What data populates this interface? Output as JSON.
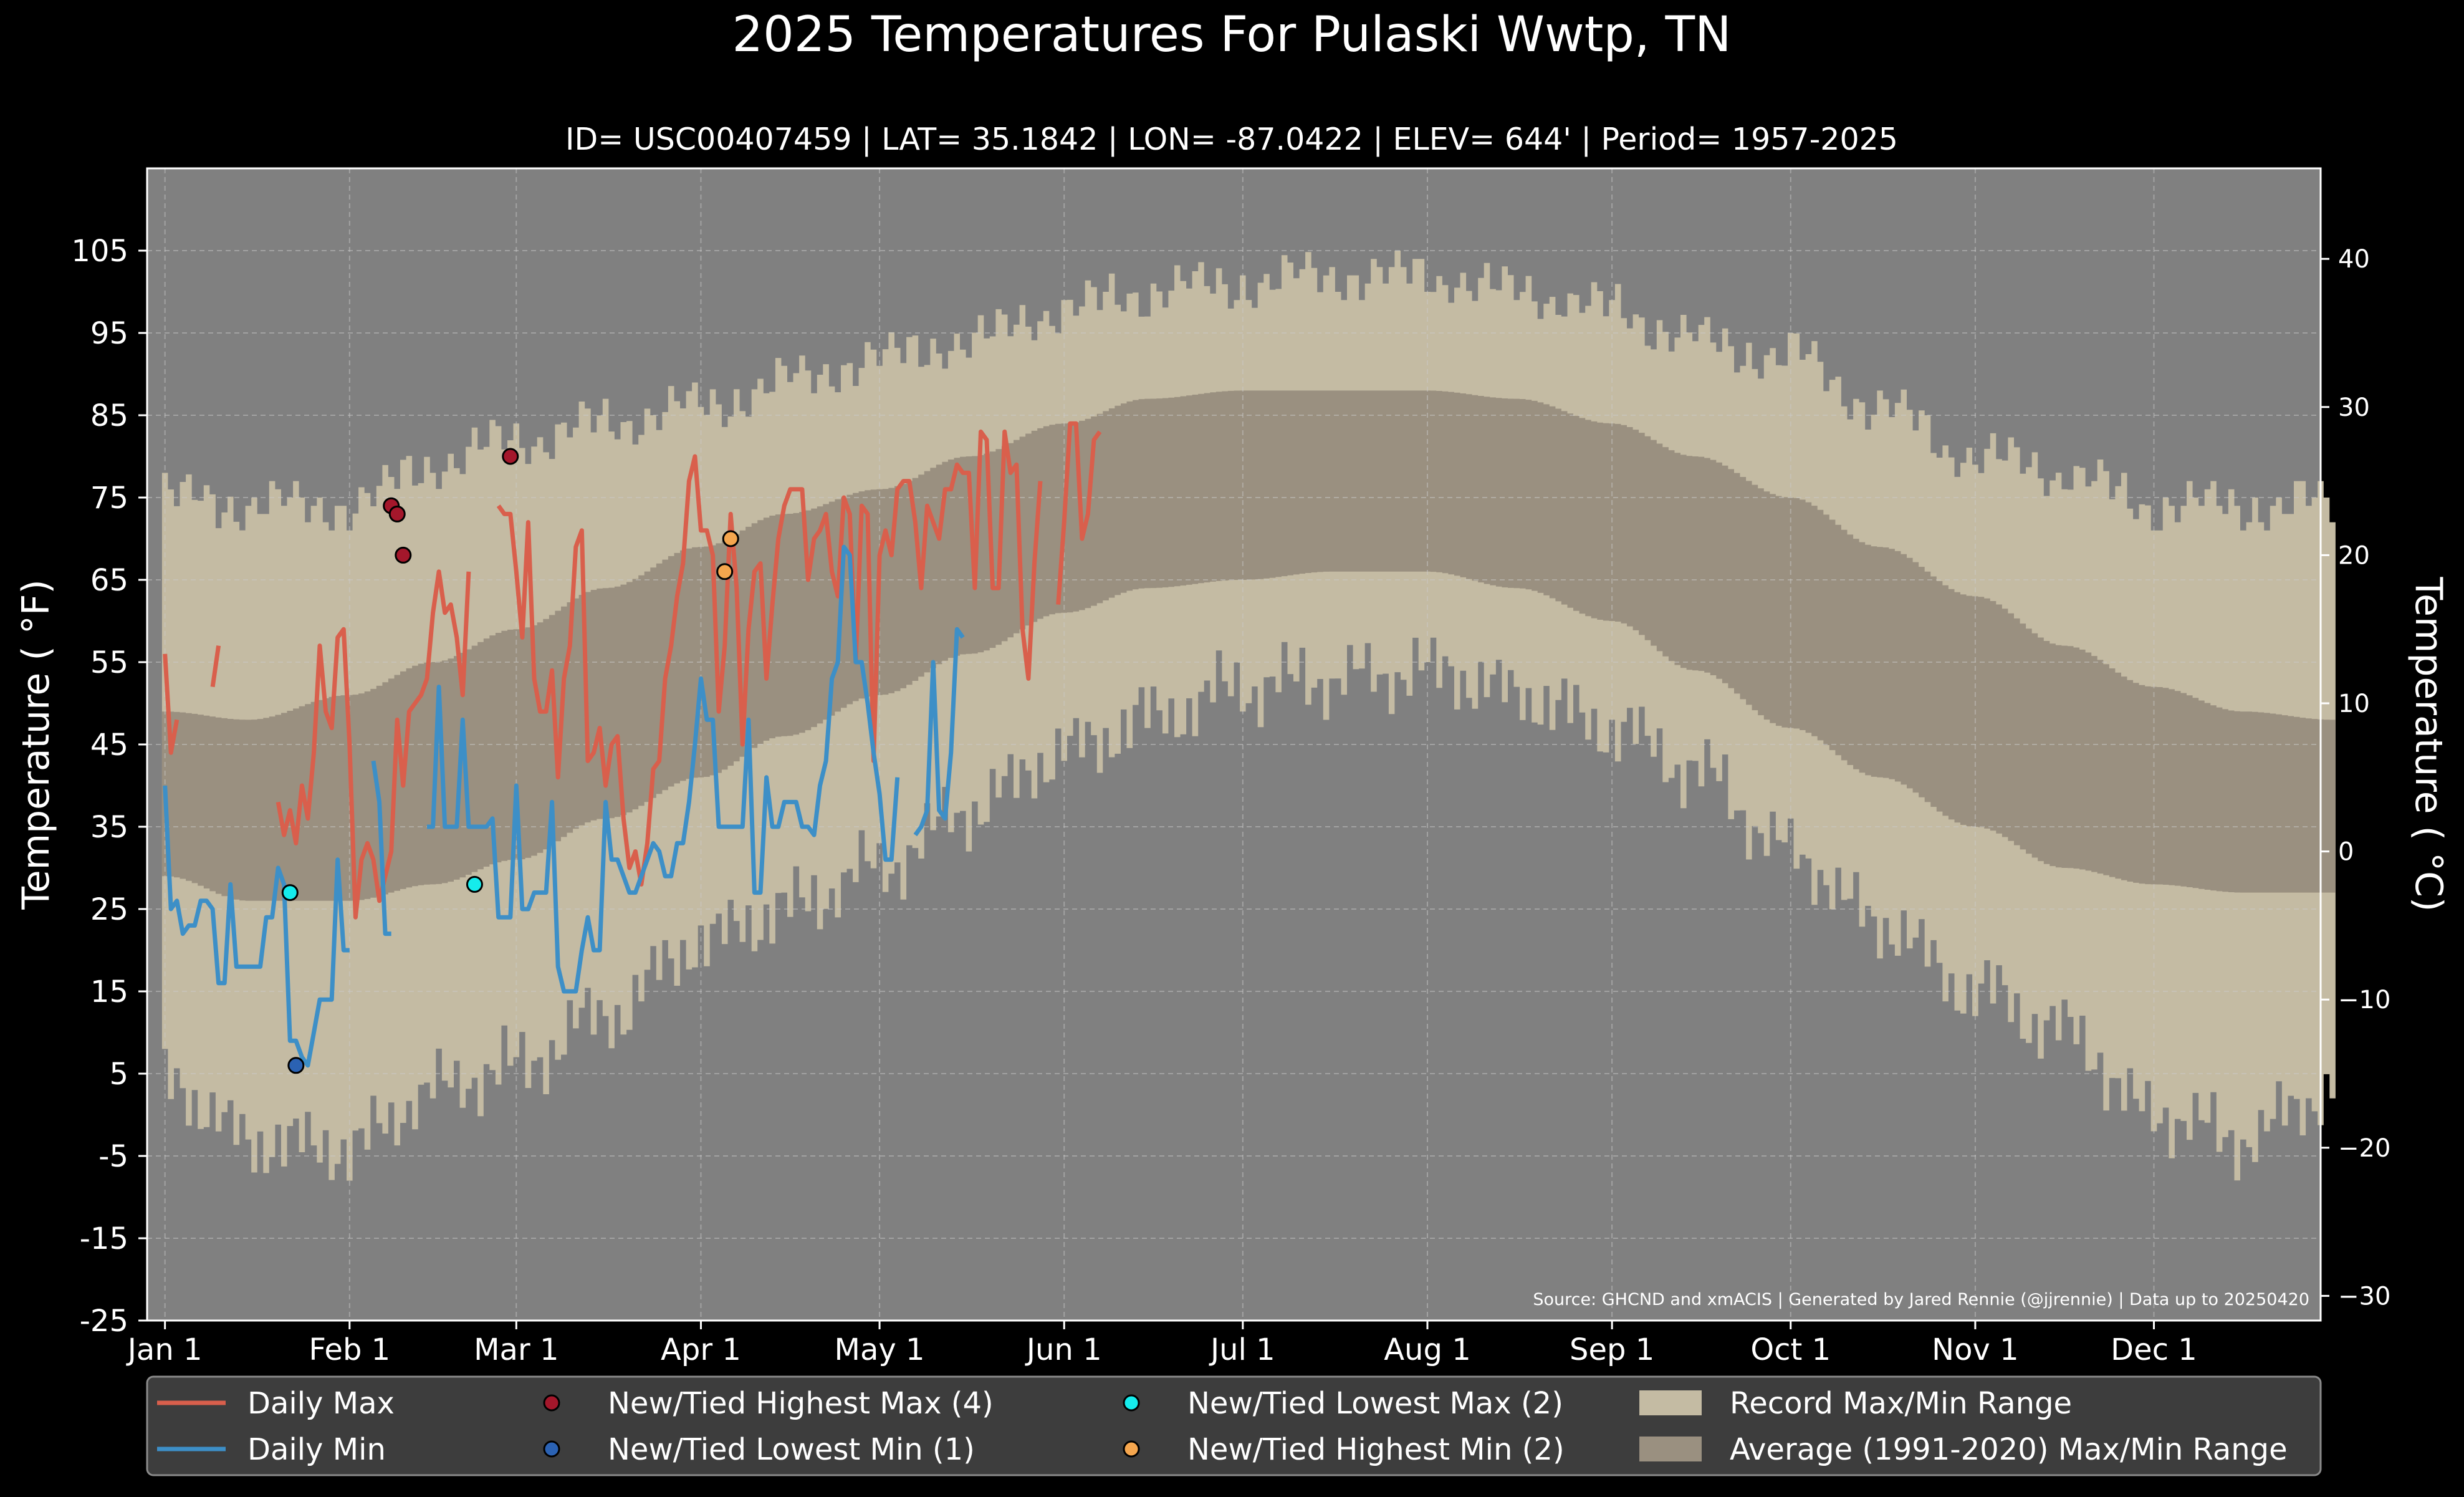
{
  "chart_data": {
    "type": "line",
    "title": "2025 Temperatures For Pulaski Wwtp, TN",
    "subtitle": "ID= USC00407459 | LAT= 35.1842 | LON= -87.0422 | ELEV= 644' | Period= 1957-2025",
    "ylabel_left": "Temperature ( °F)",
    "ylabel_right": "Temperature ( °C)",
    "source": "Source: GHCND and xmACIS | Generated by Jared Rennie (@jjrennie) | Data up to 20250420",
    "ylim_f": [
      -25,
      115
    ],
    "xlim_day": [
      -2,
      363
    ],
    "x_ticks": [
      {
        "label": "Jan 1",
        "day": 1
      },
      {
        "label": "Feb 1",
        "day": 32
      },
      {
        "label": "Mar 1",
        "day": 60
      },
      {
        "label": "Apr 1",
        "day": 91
      },
      {
        "label": "May 1",
        "day": 121
      },
      {
        "label": "Jun 1",
        "day": 152
      },
      {
        "label": "Jul 1",
        "day": 182
      },
      {
        "label": "Aug 1",
        "day": 213
      },
      {
        "label": "Sep 1",
        "day": 244
      },
      {
        "label": "Oct 1",
        "day": 274
      },
      {
        "label": "Nov 1",
        "day": 305
      },
      {
        "label": "Dec 1",
        "day": 335
      }
    ],
    "y_ticks_f": [
      105,
      95,
      85,
      75,
      65,
      55,
      45,
      35,
      25,
      15,
      5,
      -5,
      -15,
      -25
    ],
    "y_ticks_c": [
      40,
      30,
      20,
      10,
      0,
      -10,
      -20,
      -30
    ],
    "grid": true,
    "legend_position": "bottom",
    "legend": [
      {
        "label": "Daily Max",
        "kind": "line",
        "color": "#d95f4c"
      },
      {
        "label": "Daily Min",
        "kind": "line",
        "color": "#3d8fc7"
      },
      {
        "label": "New/Tied Highest Max (4)",
        "kind": "dot",
        "color": "#a4172b"
      },
      {
        "label": "New/Tied Lowest Min (1)",
        "kind": "dot",
        "color": "#2b62b3"
      },
      {
        "label": "New/Tied Lowest Max (2)",
        "kind": "dot",
        "color": "#15ecec"
      },
      {
        "label": "New/Tied Highest Min (2)",
        "kind": "dot",
        "color": "#f5a64e"
      },
      {
        "label": "Record Max/Min Range",
        "kind": "patch",
        "color": "#c4bba3"
      },
      {
        "label": "Average (1991-2020) Max/Min Range",
        "kind": "patch",
        "color": "#9a9080"
      }
    ],
    "colors": {
      "background": "#000000",
      "plot_bg": "#808080",
      "record": "#c4bba3",
      "normal": "#9a9080",
      "max_line": "#d95f4c",
      "min_line": "#3d8fc7",
      "legend_bg": "#3d3d3d"
    },
    "record_max_anchors": {
      "day": [
        1,
        15,
        32,
        46,
        60,
        75,
        91,
        105,
        121,
        136,
        152,
        166,
        182,
        197,
        213,
        228,
        244,
        258,
        274,
        289,
        305,
        320,
        335,
        350,
        365
      ],
      "value": [
        75,
        74,
        74,
        79,
        82,
        84,
        86,
        89,
        92,
        94,
        98,
        100,
        101,
        102,
        102,
        100,
        98,
        94,
        92,
        86,
        80,
        78,
        74,
        74,
        74
      ]
    },
    "record_min_anchors": {
      "day": [
        1,
        15,
        32,
        46,
        60,
        75,
        91,
        105,
        121,
        136,
        152,
        166,
        182,
        197,
        213,
        228,
        244,
        258,
        274,
        289,
        305,
        320,
        335,
        350,
        365
      ],
      "value": [
        4,
        -3,
        -4,
        3,
        6,
        12,
        21,
        25,
        30,
        37,
        44,
        48,
        52,
        53,
        54,
        51,
        47,
        42,
        32,
        23,
        15,
        10,
        0,
        -3,
        3
      ]
    },
    "normal_max_anchors": {
      "day": [
        1,
        15,
        32,
        46,
        60,
        75,
        91,
        105,
        121,
        136,
        152,
        166,
        182,
        197,
        213,
        228,
        244,
        258,
        274,
        289,
        305,
        320,
        335,
        350,
        365
      ],
      "value": [
        49,
        48,
        51,
        55,
        59,
        64,
        69,
        73,
        76,
        80,
        84,
        87,
        88,
        88,
        88,
        87,
        84,
        80,
        75,
        69,
        63,
        57,
        52,
        49,
        48
      ]
    },
    "normal_min_anchors": {
      "day": [
        1,
        15,
        32,
        46,
        60,
        75,
        91,
        105,
        121,
        136,
        152,
        166,
        182,
        197,
        213,
        228,
        244,
        258,
        274,
        289,
        305,
        320,
        335,
        350,
        365
      ],
      "value": [
        29,
        26,
        26,
        28,
        31,
        36,
        41,
        46,
        51,
        56,
        61,
        64,
        65,
        66,
        66,
        64,
        60,
        54,
        47,
        41,
        35,
        30,
        28,
        27,
        27
      ]
    },
    "daily_max": [
      56,
      44,
      48,
      null,
      null,
      null,
      null,
      null,
      52,
      57,
      null,
      null,
      null,
      null,
      null,
      null,
      null,
      null,
      null,
      38,
      34,
      37,
      33,
      40,
      36,
      44,
      57,
      49,
      47,
      58,
      59,
      45,
      24,
      31,
      33,
      31,
      26,
      29,
      32,
      48,
      40,
      49,
      50,
      51,
      53,
      61,
      66,
      61,
      62,
      58,
      51,
      66,
      null,
      null,
      null,
      null,
      74,
      73,
      73,
      66,
      58,
      72,
      53,
      49,
      49,
      54,
      41,
      53,
      57,
      69,
      71,
      43,
      44,
      47,
      40,
      45,
      46,
      36,
      30,
      32,
      28,
      33,
      42,
      43,
      53,
      57,
      63,
      67,
      77,
      80,
      71,
      71,
      68,
      49,
      57,
      73,
      64,
      45,
      59,
      66,
      67,
      53,
      62,
      70,
      74,
      76,
      76,
      76,
      65,
      70,
      71,
      73,
      66,
      63,
      75,
      73,
      55,
      74,
      73,
      43,
      68,
      71,
      68,
      76,
      77,
      77,
      72,
      64,
      74,
      72,
      70,
      76,
      76,
      79,
      78,
      78,
      64,
      83,
      82,
      64,
      64,
      83,
      78,
      79,
      59,
      53,
      67,
      77,
      null,
      null,
      62,
      72,
      84,
      84,
      70,
      73,
      82,
      83
    ],
    "daily_min": [
      40,
      25,
      26,
      22,
      23,
      23,
      26,
      26,
      25,
      16,
      16,
      28,
      18,
      18,
      18,
      18,
      18,
      24,
      24,
      30,
      28,
      9,
      9,
      7,
      6,
      10,
      14,
      14,
      14,
      31,
      20,
      20,
      null,
      null,
      null,
      43,
      38,
      22,
      22,
      null,
      null,
      null,
      null,
      null,
      35,
      35,
      52,
      35,
      35,
      35,
      48,
      35,
      35,
      35,
      35,
      36,
      24,
      24,
      24,
      40,
      25,
      25,
      27,
      27,
      27,
      38,
      18,
      15,
      15,
      15,
      20,
      24,
      20,
      20,
      38,
      31,
      31,
      29,
      27,
      27,
      29,
      31,
      33,
      32,
      29,
      29,
      33,
      33,
      38,
      45,
      53,
      48,
      48,
      35,
      35,
      35,
      35,
      35,
      48,
      27,
      27,
      41,
      35,
      35,
      38,
      38,
      38,
      35,
      35,
      34,
      40,
      43,
      53,
      55,
      69,
      68,
      55,
      55,
      50,
      44,
      39,
      31,
      31,
      41,
      null,
      null,
      34,
      35,
      37,
      55,
      37,
      36,
      44,
      59,
      58
    ],
    "markers": [
      {
        "type": "New/Tied Highest Max",
        "day": 39,
        "value": 74,
        "color": "#a4172b"
      },
      {
        "type": "New/Tied Highest Max",
        "day": 40,
        "value": 73,
        "color": "#a4172b"
      },
      {
        "type": "New/Tied Highest Max",
        "day": 41,
        "value": 68,
        "color": "#a4172b"
      },
      {
        "type": "New/Tied Highest Max",
        "day": 59,
        "value": 80,
        "color": "#a4172b"
      },
      {
        "type": "New/Tied Lowest Max",
        "day": 22,
        "value": 27,
        "color": "#15ecec"
      },
      {
        "type": "New/Tied Lowest Max",
        "day": 53,
        "value": 28,
        "color": "#15ecec"
      },
      {
        "type": "New/Tied Lowest Min",
        "day": 23,
        "value": 6,
        "color": "#2b62b3"
      },
      {
        "type": "New/Tied Highest Min",
        "day": 95,
        "value": 66,
        "color": "#f5a64e"
      },
      {
        "type": "New/Tied Highest Min",
        "day": 96,
        "value": 70,
        "color": "#f5a64e"
      }
    ]
  }
}
